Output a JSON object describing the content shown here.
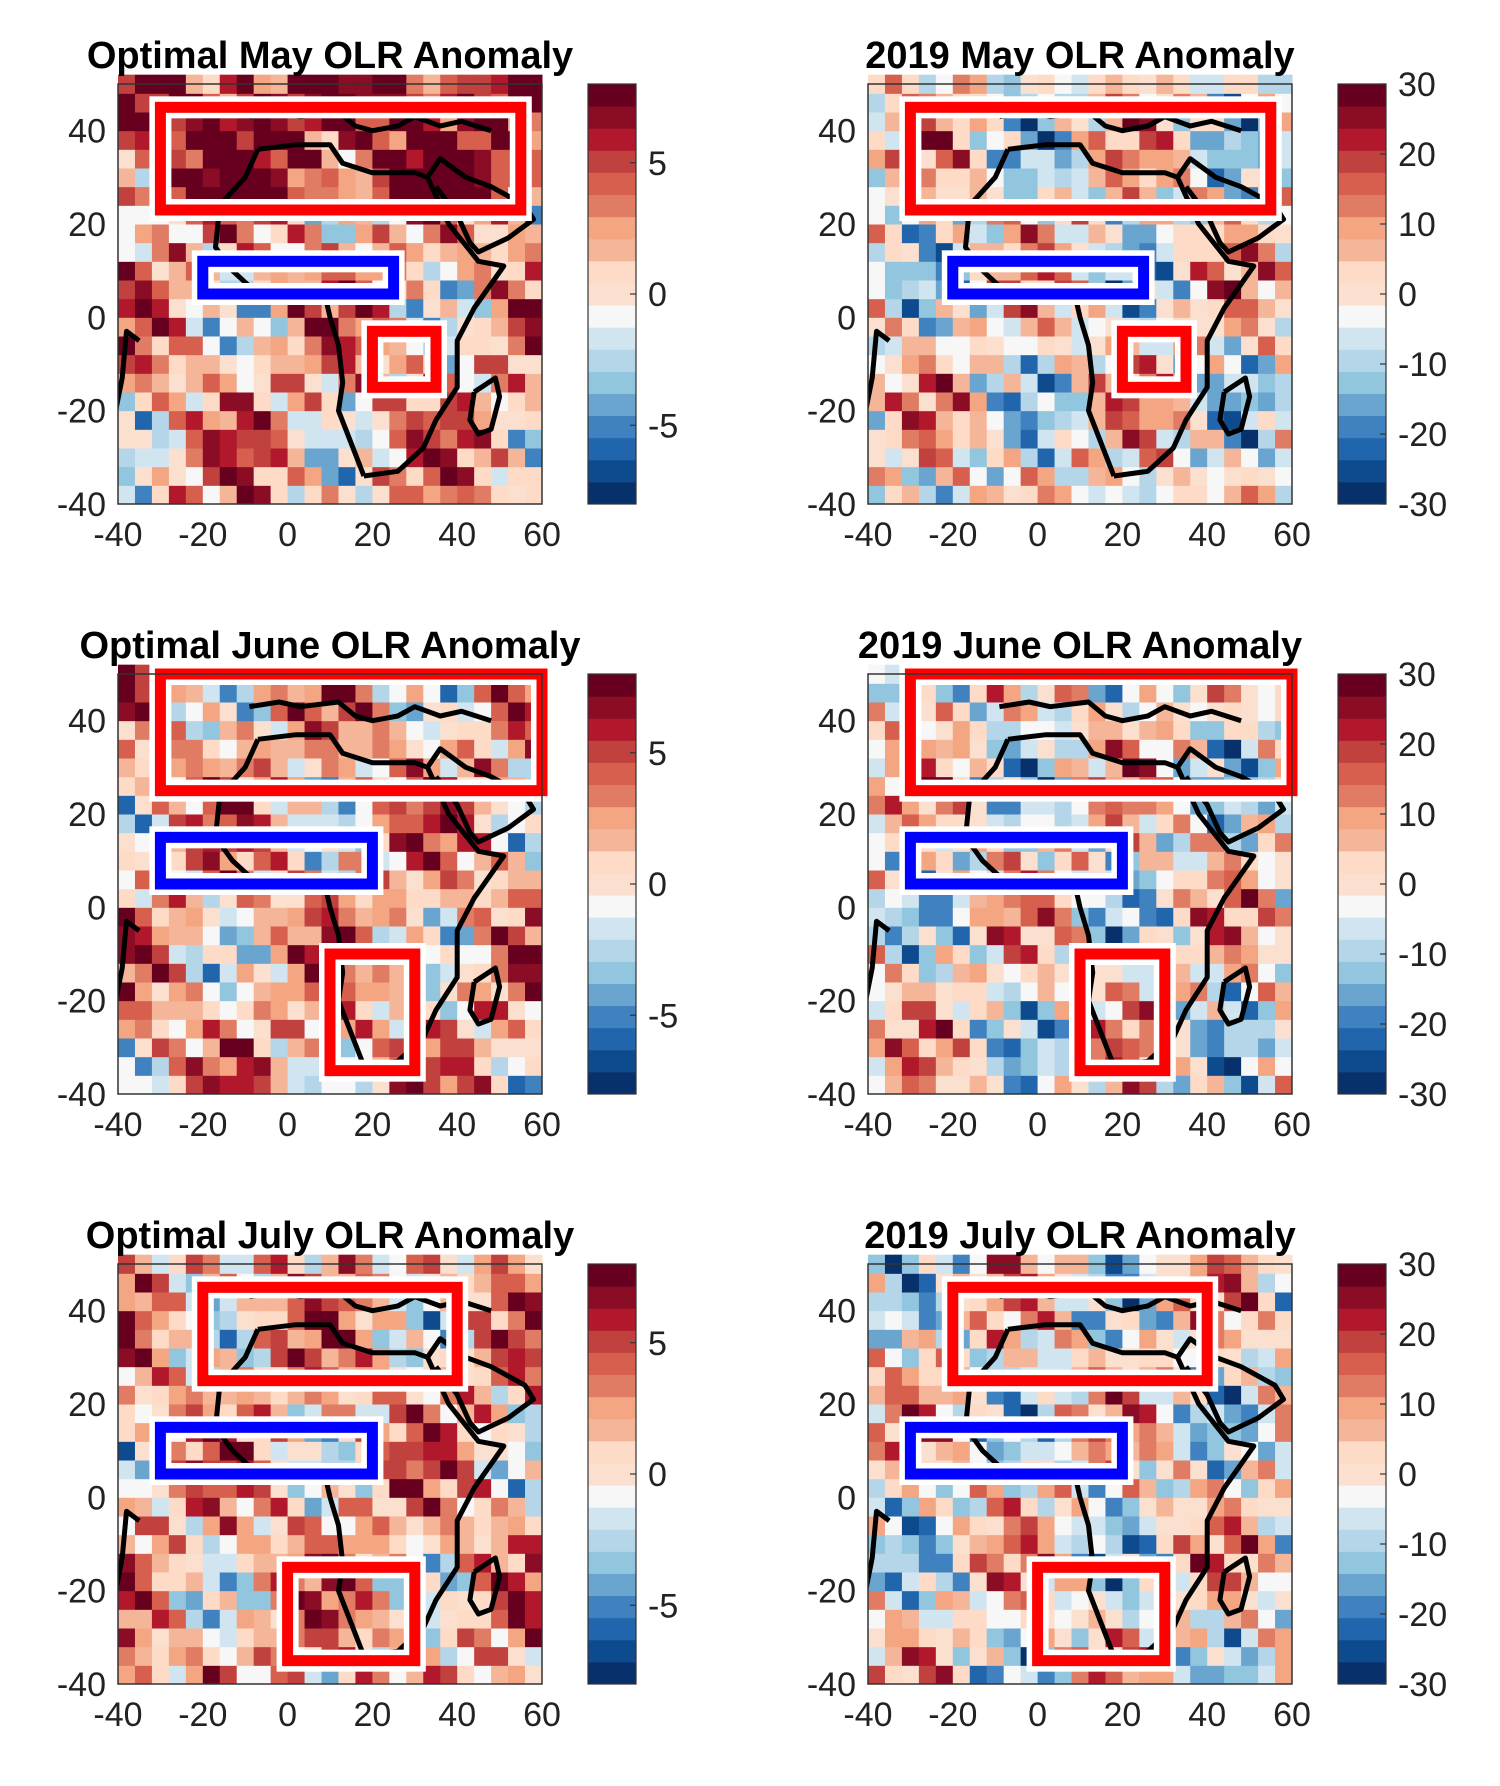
{
  "xticks": [
    "-40",
    "-20",
    "0",
    "20",
    "40",
    "60"
  ],
  "yticks": [
    "40",
    "20",
    "0",
    "-20",
    "-40"
  ],
  "axis_range": {
    "lon": [
      -40,
      60
    ],
    "lat": [
      -40,
      50
    ]
  },
  "colormap": {
    "name": "red-blue diverging",
    "colors": [
      "#08306b",
      "#0d4a8e",
      "#2166ac",
      "#3f82bf",
      "#6aa5cf",
      "#92c5de",
      "#b5d6e8",
      "#d1e5f0",
      "#f7f7f7",
      "#fbe0cf",
      "#fddbc7",
      "#f4b598",
      "#f4a582",
      "#e07c63",
      "#d6604d",
      "#c0413e",
      "#b2182b",
      "#8a0c25",
      "#67001f"
    ]
  },
  "box_colors": {
    "red": "#ff0000",
    "blue": "#0000ff"
  },
  "chart_data": [
    {
      "type": "heatmap",
      "title": "Optimal May OLR Anomaly",
      "colorbar": {
        "range": [
          -8,
          8
        ],
        "ticks": [
          "5",
          "0",
          "-5"
        ],
        "tick_values": [
          5,
          0,
          -5
        ]
      },
      "boxes": [
        {
          "color": "red",
          "lon": [
            -30,
            55
          ],
          "lat": [
            23,
            45
          ]
        },
        {
          "color": "blue",
          "lon": [
            -20,
            25
          ],
          "lat": [
            5,
            12
          ]
        },
        {
          "color": "red",
          "lon": [
            20,
            35
          ],
          "lat": [
            -15,
            -3
          ]
        }
      ]
    },
    {
      "type": "heatmap",
      "title": "2019 May OLR Anomaly",
      "colorbar": {
        "range": [
          -30,
          30
        ],
        "ticks": [
          "30",
          "20",
          "10",
          "0",
          "-10",
          "-20",
          "-30"
        ],
        "tick_values": [
          30,
          20,
          10,
          0,
          -10,
          -20,
          -30
        ]
      },
      "boxes": [
        {
          "color": "red",
          "lon": [
            -30,
            55
          ],
          "lat": [
            23,
            45
          ]
        },
        {
          "color": "blue",
          "lon": [
            -20,
            25
          ],
          "lat": [
            5,
            12
          ]
        },
        {
          "color": "red",
          "lon": [
            20,
            35
          ],
          "lat": [
            -15,
            -3
          ]
        }
      ]
    },
    {
      "type": "heatmap",
      "title": "Optimal June OLR Anomaly",
      "colorbar": {
        "range": [
          -8,
          8
        ],
        "ticks": [
          "5",
          "0",
          "-5"
        ],
        "tick_values": [
          5,
          0,
          -5
        ]
      },
      "boxes": [
        {
          "color": "red",
          "lon": [
            -30,
            60
          ],
          "lat": [
            25,
            50
          ]
        },
        {
          "color": "blue",
          "lon": [
            -30,
            20
          ],
          "lat": [
            5,
            15
          ]
        },
        {
          "color": "red",
          "lon": [
            10,
            30
          ],
          "lat": [
            -35,
            -10
          ]
        }
      ]
    },
    {
      "type": "heatmap",
      "title": "2019 June OLR Anomaly",
      "colorbar": {
        "range": [
          -30,
          30
        ],
        "ticks": [
          "30",
          "20",
          "10",
          "0",
          "-10",
          "-20",
          "-30"
        ],
        "tick_values": [
          30,
          20,
          10,
          0,
          -10,
          -20,
          -30
        ]
      },
      "boxes": [
        {
          "color": "red",
          "lon": [
            -30,
            60
          ],
          "lat": [
            25,
            50
          ]
        },
        {
          "color": "blue",
          "lon": [
            -30,
            20
          ],
          "lat": [
            5,
            15
          ]
        },
        {
          "color": "red",
          "lon": [
            10,
            30
          ],
          "lat": [
            -35,
            -10
          ]
        }
      ]
    },
    {
      "type": "heatmap",
      "title": "Optimal July OLR Anomaly",
      "colorbar": {
        "range": [
          -8,
          8
        ],
        "ticks": [
          "5",
          "0",
          "-5"
        ],
        "tick_values": [
          5,
          0,
          -5
        ]
      },
      "boxes": [
        {
          "color": "red",
          "lon": [
            -20,
            40
          ],
          "lat": [
            25,
            45
          ]
        },
        {
          "color": "blue",
          "lon": [
            -30,
            20
          ],
          "lat": [
            5,
            15
          ]
        },
        {
          "color": "red",
          "lon": [
            0,
            30
          ],
          "lat": [
            -35,
            -15
          ]
        }
      ]
    },
    {
      "type": "heatmap",
      "title": "2019 July OLR Anomaly",
      "colorbar": {
        "range": [
          -30,
          30
        ],
        "ticks": [
          "30",
          "20",
          "10",
          "0",
          "-10",
          "-20",
          "-30"
        ],
        "tick_values": [
          30,
          20,
          10,
          0,
          -10,
          -20,
          -30
        ]
      },
      "boxes": [
        {
          "color": "red",
          "lon": [
            -20,
            40
          ],
          "lat": [
            25,
            45
          ]
        },
        {
          "color": "blue",
          "lon": [
            -30,
            20
          ],
          "lat": [
            5,
            15
          ]
        },
        {
          "color": "red",
          "lon": [
            0,
            30
          ],
          "lat": [
            -35,
            -15
          ]
        }
      ]
    }
  ]
}
